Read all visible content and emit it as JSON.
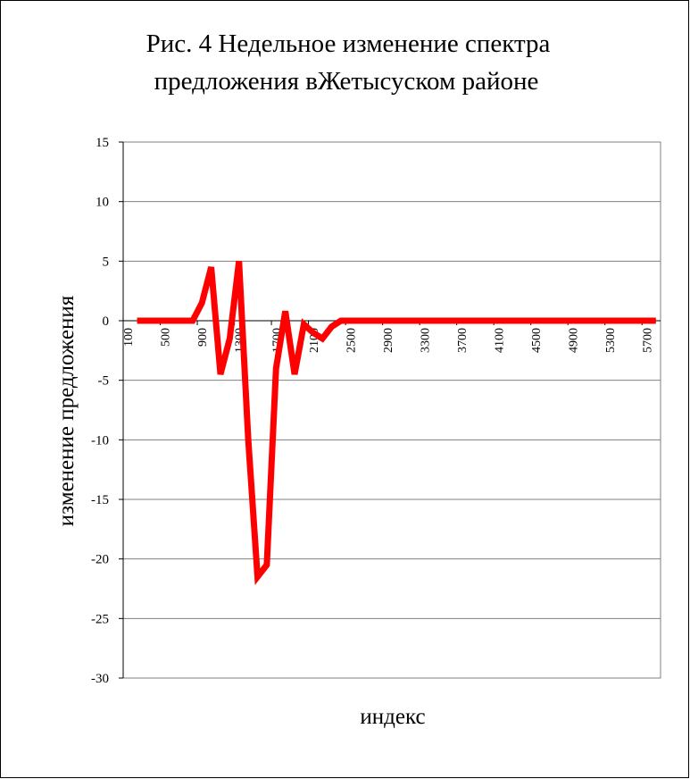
{
  "chart_data": {
    "type": "line",
    "title": [
      "Рис. 4 Недельное изменение спектра",
      "предложения вЖетысуском районе"
    ],
    "x_label": "индекс",
    "y_label": "изменение предложения",
    "categories": [
      100,
      null,
      null,
      null,
      500,
      null,
      null,
      null,
      900,
      null,
      null,
      null,
      1300,
      null,
      null,
      null,
      1700,
      null,
      null,
      null,
      2100,
      null,
      null,
      null,
      2500,
      null,
      null,
      null,
      2900,
      null,
      null,
      null,
      3300,
      null,
      null,
      null,
      3700,
      null,
      null,
      null,
      4100,
      null,
      null,
      null,
      4500,
      null,
      null,
      null,
      4900,
      null,
      null,
      null,
      5300,
      null,
      null,
      null,
      5700,
      null
    ],
    "series": [
      {
        "name": "изменение",
        "color": "#ff0000",
        "values": [
          null,
          0,
          0,
          0,
          0,
          0,
          0,
          0,
          1.5,
          4.5,
          -4.5,
          -1.5,
          5,
          -10,
          -21.5,
          -20.5,
          -4,
          0.8,
          -4.5,
          -0.3,
          -1,
          -1.5,
          -0.5,
          0,
          0,
          0,
          0,
          0,
          0,
          0,
          0,
          0,
          0,
          0,
          0,
          0,
          0,
          0,
          0,
          0,
          0,
          0,
          0,
          0,
          0,
          0,
          0,
          0,
          0,
          0,
          0,
          0,
          0,
          0,
          0,
          0,
          0,
          0
        ]
      }
    ],
    "ylim": [
      -30,
      15
    ],
    "yticks": [
      -30,
      -25,
      -20,
      -15,
      -10,
      -5,
      0,
      5,
      10,
      15
    ],
    "grid": true
  }
}
